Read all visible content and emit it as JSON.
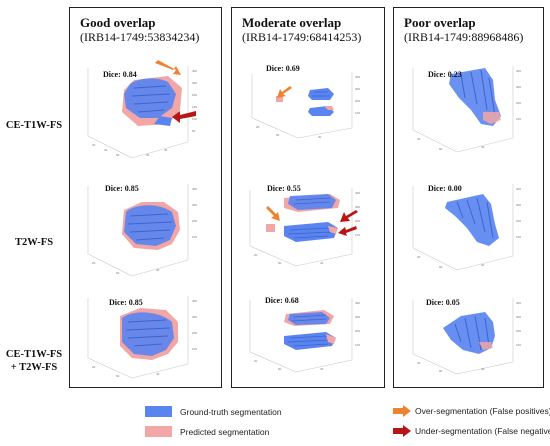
{
  "panels": [
    {
      "title": "Good overlap",
      "id": "(IRB14-1749:53834234)"
    },
    {
      "title": "Moderate overlap",
      "id": "(IRB14-1749:68414253)"
    },
    {
      "title": "Poor overlap",
      "id": "(IRB14-1749:88968486)"
    }
  ],
  "rows": [
    {
      "label_line1": "CE-T1W-FS",
      "label_line2": ""
    },
    {
      "label_line1": "T2W-FS",
      "label_line2": ""
    },
    {
      "label_line1": "CE-T1W-FS",
      "label_line2": "+ T2W-FS"
    }
  ],
  "dice": [
    [
      "Dice: 0.84",
      "Dice: 0.85",
      "Dice: 0.85"
    ],
    [
      "Dice: 0.69",
      "Dice: 0.55",
      "Dice: 0.68"
    ],
    [
      "Dice: 0.23",
      "Dice: 0.00",
      "Dice: 0.05"
    ]
  ],
  "legend": {
    "ground_truth": "Ground-truth segmentation",
    "predicted": "Predicted segmentation",
    "over": "Over-segmentation (False positives)",
    "under": "Under-segmentation (False negatives)"
  },
  "colors": {
    "ground_truth": "#5a84f0",
    "predicted": "#f2a6a6",
    "over_arrow": "#ef8230",
    "under_arrow": "#b81616"
  }
}
